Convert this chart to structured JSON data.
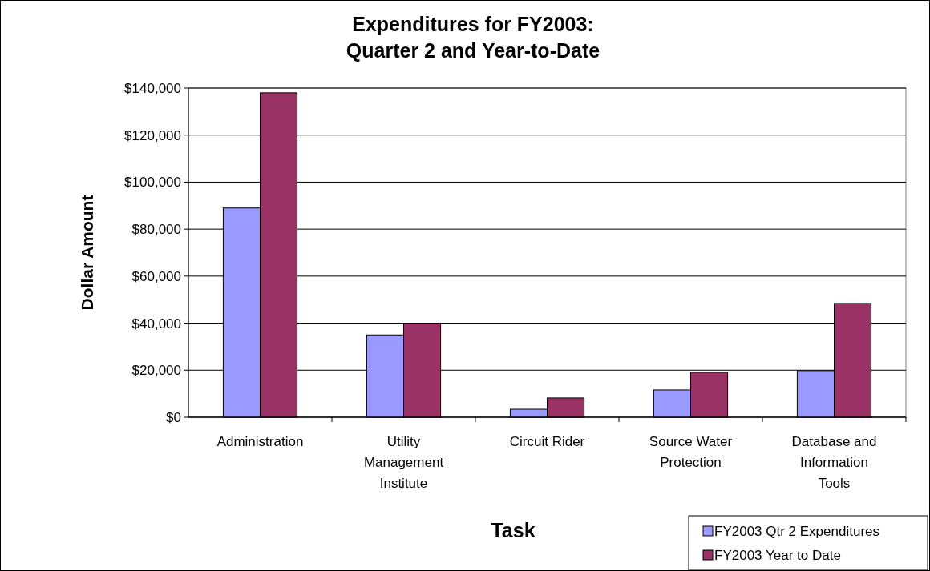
{
  "chart_data": {
    "type": "bar",
    "title": "Expenditures for FY2003:\nQuarter 2 and Year-to-Date",
    "xlabel": "Task",
    "ylabel": "Dollar Amount",
    "categories": [
      "Administration",
      "Utility Management Institute",
      "Circuit Rider",
      "Source Water Protection",
      "Database and Information Tools"
    ],
    "series": [
      {
        "name": "FY2003 Qtr 2 Expenditures",
        "color": "#9999ff",
        "values": [
          89000,
          35000,
          3400,
          11600,
          19800
        ]
      },
      {
        "name": "FY2003 Year to Date",
        "color": "#993366",
        "values": [
          138000,
          40000,
          8200,
          19100,
          48400
        ]
      }
    ],
    "ylim": [
      0,
      140000
    ],
    "yticks": [
      {
        "value": 0,
        "label": "$0"
      },
      {
        "value": 20000,
        "label": "$20,000"
      },
      {
        "value": 40000,
        "label": "$40,000"
      },
      {
        "value": 60000,
        "label": "$60,000"
      },
      {
        "value": 80000,
        "label": "$80,000"
      },
      {
        "value": 100000,
        "label": "$100,000"
      },
      {
        "value": 120000,
        "label": "$120,000"
      },
      {
        "value": 140000,
        "label": "$140,000"
      }
    ],
    "grid": "y",
    "legend": "bottom right"
  }
}
